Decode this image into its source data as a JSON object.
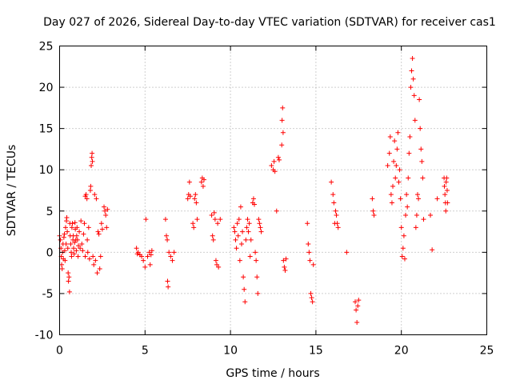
{
  "chart_data": {
    "type": "scatter",
    "title": "Day 027 of 2026, Sidereal Day-to-day VTEC variation (SDTVAR) for receiver cas1",
    "xlabel": "GPS time / hours",
    "ylabel": "SDTVAR / TECUs",
    "xlim": [
      0,
      25
    ],
    "ylim": [
      -10,
      25
    ],
    "xticks": [
      0,
      5,
      10,
      15,
      20,
      25
    ],
    "yticks": [
      -10,
      -5,
      0,
      5,
      10,
      15,
      20,
      25
    ],
    "xtick_labels": [
      "0",
      "5",
      "10",
      "15",
      "20",
      "25"
    ],
    "ytick_labels": [
      "-10",
      "-5",
      "0",
      "5",
      "10",
      "15",
      "20",
      "25"
    ],
    "grid": true,
    "marker": "+",
    "marker_color": "#ff0000",
    "series": [
      {
        "name": "SDTVAR",
        "points": [
          [
            0.0,
            2.0
          ],
          [
            0.05,
            1.5
          ],
          [
            0.08,
            0.5
          ],
          [
            0.1,
            -0.5
          ],
          [
            0.12,
            -1.5
          ],
          [
            0.15,
            -2.0
          ],
          [
            0.18,
            0.0
          ],
          [
            0.2,
            1.0
          ],
          [
            0.22,
            -0.8
          ],
          [
            0.25,
            1.8
          ],
          [
            0.28,
            2.2
          ],
          [
            0.3,
            0.2
          ],
          [
            0.32,
            -1.0
          ],
          [
            0.35,
            3.0
          ],
          [
            0.38,
            1.0
          ],
          [
            0.4,
            3.8
          ],
          [
            0.42,
            4.2
          ],
          [
            0.45,
            2.5
          ],
          [
            0.48,
            0.5
          ],
          [
            0.5,
            -2.5
          ],
          [
            0.52,
            -3.5
          ],
          [
            0.55,
            -3.0
          ],
          [
            0.58,
            -4.8
          ],
          [
            0.6,
            3.5
          ],
          [
            0.62,
            2.0
          ],
          [
            0.65,
            1.0
          ],
          [
            0.68,
            0.0
          ],
          [
            0.7,
            -0.5
          ],
          [
            0.72,
            3.0
          ],
          [
            0.75,
            3.5
          ],
          [
            0.78,
            1.5
          ],
          [
            0.8,
            2.0
          ],
          [
            0.82,
            0.5
          ],
          [
            0.85,
            -0.2
          ],
          [
            0.88,
            1.2
          ],
          [
            0.9,
            3.6
          ],
          [
            0.92,
            2.8
          ],
          [
            0.95,
            1.5
          ],
          [
            0.98,
            0.2
          ],
          [
            1.0,
            2.0
          ],
          [
            1.02,
            3.0
          ],
          [
            1.05,
            1.5
          ],
          [
            1.08,
            -0.5
          ],
          [
            1.1,
            0.8
          ],
          [
            1.15,
            2.5
          ],
          [
            1.2,
            0.5
          ],
          [
            1.25,
            3.8
          ],
          [
            1.3,
            1.0
          ],
          [
            1.35,
            0.2
          ],
          [
            1.4,
            2.2
          ],
          [
            1.45,
            3.5
          ],
          [
            1.5,
            -0.5
          ],
          [
            1.5,
            6.8
          ],
          [
            1.55,
            7.0
          ],
          [
            1.6,
            6.5
          ],
          [
            1.62,
            1.5
          ],
          [
            1.65,
            0.0
          ],
          [
            1.7,
            3.0
          ],
          [
            1.75,
            -0.8
          ],
          [
            1.8,
            7.5
          ],
          [
            1.82,
            8.0
          ],
          [
            1.85,
            10.5
          ],
          [
            1.88,
            11.5
          ],
          [
            1.9,
            12.0
          ],
          [
            1.92,
            11.0
          ],
          [
            1.95,
            -0.5
          ],
          [
            2.0,
            -1.5
          ],
          [
            2.05,
            7.0
          ],
          [
            2.1,
            -1.0
          ],
          [
            2.15,
            6.5
          ],
          [
            2.2,
            -2.5
          ],
          [
            2.25,
            2.5
          ],
          [
            2.3,
            2.2
          ],
          [
            2.35,
            -2.0
          ],
          [
            2.4,
            -0.5
          ],
          [
            2.45,
            3.5
          ],
          [
            2.5,
            2.8
          ],
          [
            2.6,
            5.5
          ],
          [
            2.65,
            5.0
          ],
          [
            2.7,
            4.5
          ],
          [
            2.75,
            3.0
          ],
          [
            2.8,
            5.2
          ],
          [
            4.5,
            0.5
          ],
          [
            4.55,
            -0.2
          ],
          [
            4.6,
            0.0
          ],
          [
            4.7,
            -0.3
          ],
          [
            4.8,
            -0.5
          ],
          [
            4.9,
            -1.0
          ],
          [
            5.0,
            -1.8
          ],
          [
            5.05,
            4.0
          ],
          [
            5.15,
            -0.5
          ],
          [
            5.25,
            0.0
          ],
          [
            5.3,
            -1.5
          ],
          [
            5.35,
            -0.3
          ],
          [
            5.4,
            0.2
          ],
          [
            6.2,
            4.0
          ],
          [
            6.25,
            2.0
          ],
          [
            6.3,
            1.5
          ],
          [
            6.32,
            -3.5
          ],
          [
            6.35,
            -4.2
          ],
          [
            6.4,
            0.0
          ],
          [
            6.5,
            -0.5
          ],
          [
            6.6,
            -1.0
          ],
          [
            6.7,
            0.0
          ],
          [
            7.5,
            6.5
          ],
          [
            7.55,
            7.0
          ],
          [
            7.6,
            8.5
          ],
          [
            7.65,
            6.8
          ],
          [
            7.8,
            3.5
          ],
          [
            7.85,
            3.0
          ],
          [
            7.9,
            6.5
          ],
          [
            7.95,
            7.0
          ],
          [
            8.0,
            6.0
          ],
          [
            8.05,
            4.0
          ],
          [
            8.3,
            8.5
          ],
          [
            8.35,
            9.0
          ],
          [
            8.4,
            8.0
          ],
          [
            8.45,
            8.8
          ],
          [
            8.9,
            4.5
          ],
          [
            8.95,
            2.0
          ],
          [
            9.0,
            1.5
          ],
          [
            9.05,
            4.8
          ],
          [
            9.1,
            4.0
          ],
          [
            9.15,
            -1.0
          ],
          [
            9.2,
            -1.5
          ],
          [
            9.25,
            3.5
          ],
          [
            9.3,
            -1.8
          ],
          [
            9.4,
            4.0
          ],
          [
            10.2,
            3.0
          ],
          [
            10.25,
            2.5
          ],
          [
            10.3,
            1.5
          ],
          [
            10.35,
            0.5
          ],
          [
            10.4,
            3.5
          ],
          [
            10.45,
            2.0
          ],
          [
            10.5,
            4.0
          ],
          [
            10.55,
            -1.0
          ],
          [
            10.6,
            5.5
          ],
          [
            10.65,
            1.0
          ],
          [
            10.7,
            2.5
          ],
          [
            10.75,
            -3.0
          ],
          [
            10.8,
            -4.5
          ],
          [
            10.85,
            -6.0
          ],
          [
            10.9,
            1.5
          ],
          [
            10.95,
            3.0
          ],
          [
            11.0,
            4.0
          ],
          [
            11.05,
            2.5
          ],
          [
            11.1,
            3.5
          ],
          [
            11.15,
            -0.5
          ],
          [
            11.2,
            1.5
          ],
          [
            11.3,
            6.0
          ],
          [
            11.35,
            6.5
          ],
          [
            11.4,
            5.8
          ],
          [
            11.45,
            0.0
          ],
          [
            11.5,
            -1.0
          ],
          [
            11.55,
            -3.0
          ],
          [
            11.6,
            -5.0
          ],
          [
            11.65,
            4.0
          ],
          [
            11.7,
            3.5
          ],
          [
            11.75,
            3.0
          ],
          [
            11.8,
            2.5
          ],
          [
            12.4,
            10.5
          ],
          [
            12.5,
            10.0
          ],
          [
            12.55,
            11.0
          ],
          [
            12.6,
            9.8
          ],
          [
            12.7,
            5.0
          ],
          [
            12.8,
            11.5
          ],
          [
            12.85,
            11.2
          ],
          [
            13.0,
            13.0
          ],
          [
            13.02,
            16.0
          ],
          [
            13.05,
            17.5
          ],
          [
            13.08,
            14.5
          ],
          [
            13.1,
            -1.0
          ],
          [
            13.15,
            -1.8
          ],
          [
            13.2,
            -2.2
          ],
          [
            13.25,
            -0.8
          ],
          [
            14.5,
            3.5
          ],
          [
            14.55,
            1.0
          ],
          [
            14.6,
            0.0
          ],
          [
            14.65,
            -1.0
          ],
          [
            14.7,
            -5.0
          ],
          [
            14.75,
            -5.5
          ],
          [
            14.8,
            -6.0
          ],
          [
            14.85,
            -1.5
          ],
          [
            15.9,
            8.5
          ],
          [
            16.0,
            7.0
          ],
          [
            16.05,
            6.0
          ],
          [
            16.1,
            3.5
          ],
          [
            16.15,
            5.0
          ],
          [
            16.2,
            4.5
          ],
          [
            16.25,
            3.5
          ],
          [
            16.3,
            3.0
          ],
          [
            16.8,
            0.0
          ],
          [
            17.3,
            -6.0
          ],
          [
            17.35,
            -7.0
          ],
          [
            17.4,
            -8.5
          ],
          [
            17.45,
            -6.5
          ],
          [
            17.5,
            -5.8
          ],
          [
            18.3,
            6.5
          ],
          [
            18.35,
            5.0
          ],
          [
            18.4,
            4.5
          ],
          [
            19.2,
            10.5
          ],
          [
            19.3,
            12.0
          ],
          [
            19.35,
            14.0
          ],
          [
            19.4,
            7.0
          ],
          [
            19.45,
            6.0
          ],
          [
            19.5,
            8.0
          ],
          [
            19.55,
            11.0
          ],
          [
            19.6,
            13.5
          ],
          [
            19.65,
            9.0
          ],
          [
            19.7,
            10.5
          ],
          [
            19.75,
            12.5
          ],
          [
            19.8,
            14.5
          ],
          [
            19.85,
            8.5
          ],
          [
            19.9,
            10.0
          ],
          [
            19.95,
            6.5
          ],
          [
            20.0,
            3.0
          ],
          [
            20.05,
            -0.5
          ],
          [
            20.1,
            0.5
          ],
          [
            20.15,
            2.0
          ],
          [
            20.2,
            -0.8
          ],
          [
            20.25,
            4.5
          ],
          [
            20.3,
            7.0
          ],
          [
            20.35,
            5.5
          ],
          [
            20.4,
            9.0
          ],
          [
            20.45,
            12.0
          ],
          [
            20.5,
            14.0
          ],
          [
            20.55,
            20.0
          ],
          [
            20.6,
            22.0
          ],
          [
            20.65,
            23.5
          ],
          [
            20.7,
            21.0
          ],
          [
            20.75,
            19.0
          ],
          [
            20.8,
            16.0
          ],
          [
            20.85,
            3.0
          ],
          [
            20.9,
            4.5
          ],
          [
            20.95,
            7.0
          ],
          [
            21.0,
            6.5
          ],
          [
            21.05,
            18.5
          ],
          [
            21.1,
            15.0
          ],
          [
            21.15,
            12.5
          ],
          [
            21.2,
            11.0
          ],
          [
            21.25,
            9.0
          ],
          [
            21.3,
            4.0
          ],
          [
            21.7,
            4.5
          ],
          [
            21.8,
            0.3
          ],
          [
            22.1,
            6.5
          ],
          [
            22.5,
            9.0
          ],
          [
            22.52,
            8.0
          ],
          [
            22.55,
            7.0
          ],
          [
            22.58,
            6.0
          ],
          [
            22.6,
            5.0
          ],
          [
            22.62,
            8.5
          ],
          [
            22.65,
            9.0
          ],
          [
            22.68,
            7.5
          ],
          [
            22.7,
            6.0
          ]
        ]
      }
    ]
  }
}
